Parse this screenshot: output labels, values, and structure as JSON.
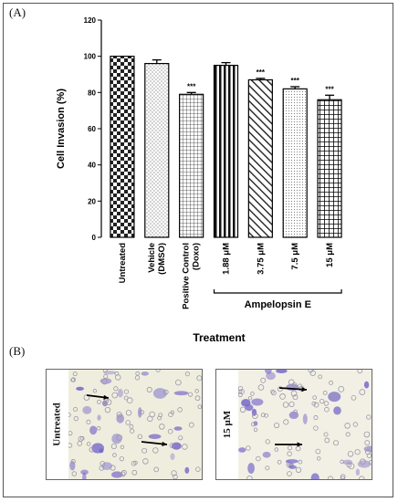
{
  "panel_a_label": "(A)",
  "panel_b_label": "(B)",
  "chart_data": {
    "type": "bar",
    "ylabel": "Cell Invasion (%)",
    "xlabel": "Treatment",
    "ylim": [
      0,
      120
    ],
    "yticks": [
      "0",
      "20",
      "40",
      "60",
      "80",
      "100",
      "120"
    ],
    "categories": [
      "Untreated",
      "Vehicle (DMSO)",
      "Positive Control (Doxo)",
      "1.88 μM",
      "3.75 μM",
      "7.5 μM",
      "15 μM"
    ],
    "values": [
      100,
      96,
      79,
      95,
      87,
      82,
      76
    ],
    "errors": [
      0,
      2,
      1,
      1.5,
      0.8,
      1.2,
      2.5
    ],
    "significance": [
      "",
      "",
      "***",
      "",
      "***",
      "***",
      "***"
    ],
    "group_label": "Ampelopsin E",
    "patterns": [
      "checker",
      "dots",
      "grid",
      "vertical",
      "diagonal",
      "finedots",
      "grid-bold"
    ]
  },
  "micrographs": [
    {
      "label": "Untreated",
      "background": "#efeede",
      "cell_color": "#7466c8"
    },
    {
      "label": "15 μM",
      "background": "#f2f0e4",
      "cell_color": "#7466c8"
    }
  ]
}
